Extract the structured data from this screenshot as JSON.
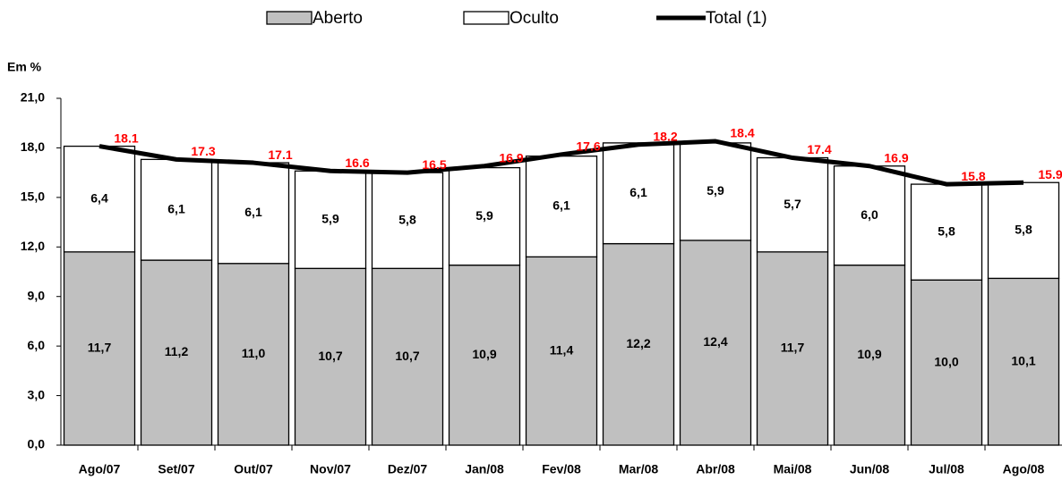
{
  "chart_data": {
    "type": "bar",
    "stacked": true,
    "y_label": "Em %",
    "categories": [
      "Ago/07",
      "Set/07",
      "Out/07",
      "Nov/07",
      "Dez/07",
      "Jan/08",
      "Fev/08",
      "Mar/08",
      "Abr/08",
      "Mai/08",
      "Jun/08",
      "Jul/08",
      "Ago/08"
    ],
    "series": [
      {
        "name": "Aberto",
        "color": "#c0c0c0",
        "values": [
          11.7,
          11.2,
          11.0,
          10.7,
          10.7,
          10.9,
          11.4,
          12.2,
          12.4,
          11.7,
          10.9,
          10.0,
          10.1
        ],
        "value_labels": [
          "11,7",
          "11,2",
          "11,0",
          "10,7",
          "10,7",
          "10,9",
          "11,4",
          "12,2",
          "12,4",
          "11,7",
          "10,9",
          "10,0",
          "10,1"
        ]
      },
      {
        "name": "Oculto",
        "color": "#ffffff",
        "values": [
          6.4,
          6.1,
          6.1,
          5.9,
          5.8,
          5.9,
          6.1,
          6.1,
          5.9,
          5.7,
          6.0,
          5.8,
          5.8
        ],
        "value_labels": [
          "6,4",
          "6,1",
          "6,1",
          "5,9",
          "5,8",
          "5,9",
          "6,1",
          "6,1",
          "5,9",
          "5,7",
          "6,0",
          "5,8",
          "5,8"
        ]
      },
      {
        "name": "Total (1)",
        "type": "line",
        "color": "#000000",
        "label_color": "#ff0000",
        "values": [
          18.1,
          17.3,
          17.1,
          16.6,
          16.5,
          16.9,
          17.6,
          18.2,
          18.4,
          17.4,
          16.9,
          15.8,
          15.9
        ]
      }
    ],
    "ylim": [
      0,
      21
    ],
    "yticks": [
      {
        "value": 0,
        "label": "0,0"
      },
      {
        "value": 3,
        "label": "3,0"
      },
      {
        "value": 6,
        "label": "6,0"
      },
      {
        "value": 9,
        "label": "9,0"
      },
      {
        "value": 12,
        "label": "12,0"
      },
      {
        "value": 15,
        "label": "15,0"
      },
      {
        "value": 18,
        "label": "18,0"
      },
      {
        "value": 21,
        "label": "21,0"
      }
    ],
    "legend": "top"
  }
}
